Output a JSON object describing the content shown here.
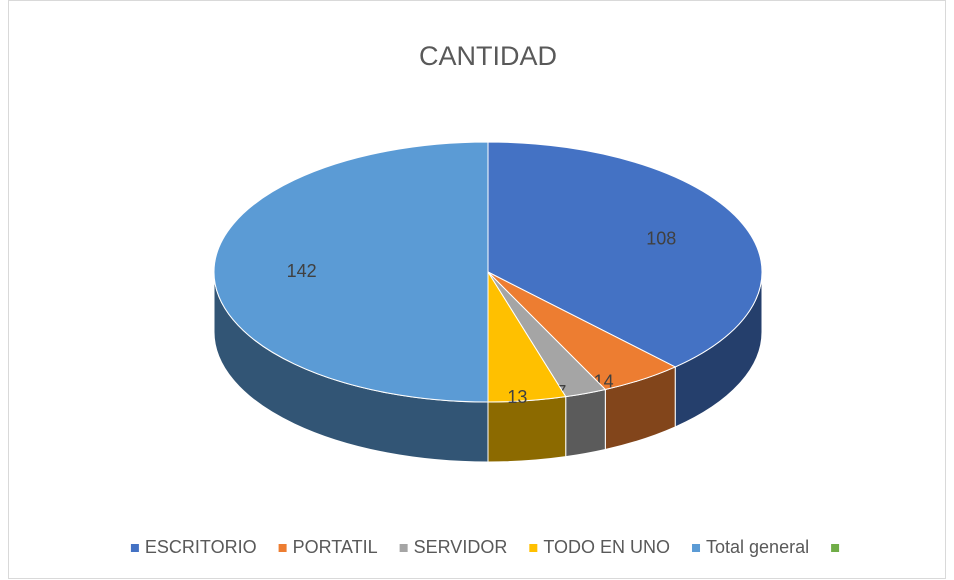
{
  "chart_data": {
    "type": "pie",
    "title": "CANTIDAD",
    "categories": [
      "ESCRITORIO",
      "PORTATIL",
      "SERVIDOR",
      "TODO EN UNO",
      "Total general",
      null
    ],
    "values": [
      108,
      14,
      7,
      13,
      142,
      0
    ],
    "colors": [
      "#4472c4",
      "#ed7d31",
      "#a5a5a5",
      "#ffc000",
      "#5b9bd5",
      "#70ad47"
    ],
    "legend": "bottom"
  }
}
